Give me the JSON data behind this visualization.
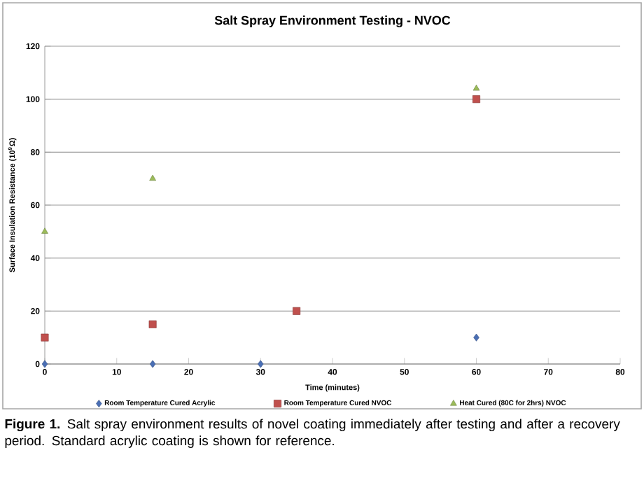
{
  "chart_data": {
    "type": "scatter",
    "title": "Salt Spray Environment Testing - NVOC",
    "xlabel": "Time (minutes)",
    "ylabel": "Surface Insulation Resistance (10$^{9}$Ω)",
    "xlim": [
      0,
      80
    ],
    "xticks": [
      0,
      10,
      20,
      30,
      40,
      50,
      60,
      70,
      80
    ],
    "ylim": [
      0,
      120
    ],
    "yticks": [
      0,
      20,
      40,
      60,
      80,
      100,
      120
    ],
    "grid": "y",
    "legend": "bottom",
    "series": [
      {
        "name": "Room Temperature Cured Acrylic",
        "color": "#4a6fb5",
        "marker": "diamond",
        "x": [
          0,
          15,
          30,
          60
        ],
        "values": [
          0,
          0,
          0,
          10
        ]
      },
      {
        "name": "Room Temperature Cured NVOC",
        "color": "#c0504d",
        "marker": "square",
        "x": [
          0,
          15,
          35,
          60
        ],
        "values": [
          10,
          15,
          20,
          100
        ]
      },
      {
        "name": "Heat Cured (80C for 2hrs) NVOC",
        "color": "#9bbb59",
        "marker": "triangle",
        "x": [
          0,
          15,
          60
        ],
        "values": [
          50,
          70,
          104
        ]
      }
    ],
    "annotations": [
      "**Figure 1.** Salt spray environment results of novel coating immediately after testing and after a recovery period. Standard acrylic coating is shown for reference."
    ]
  }
}
